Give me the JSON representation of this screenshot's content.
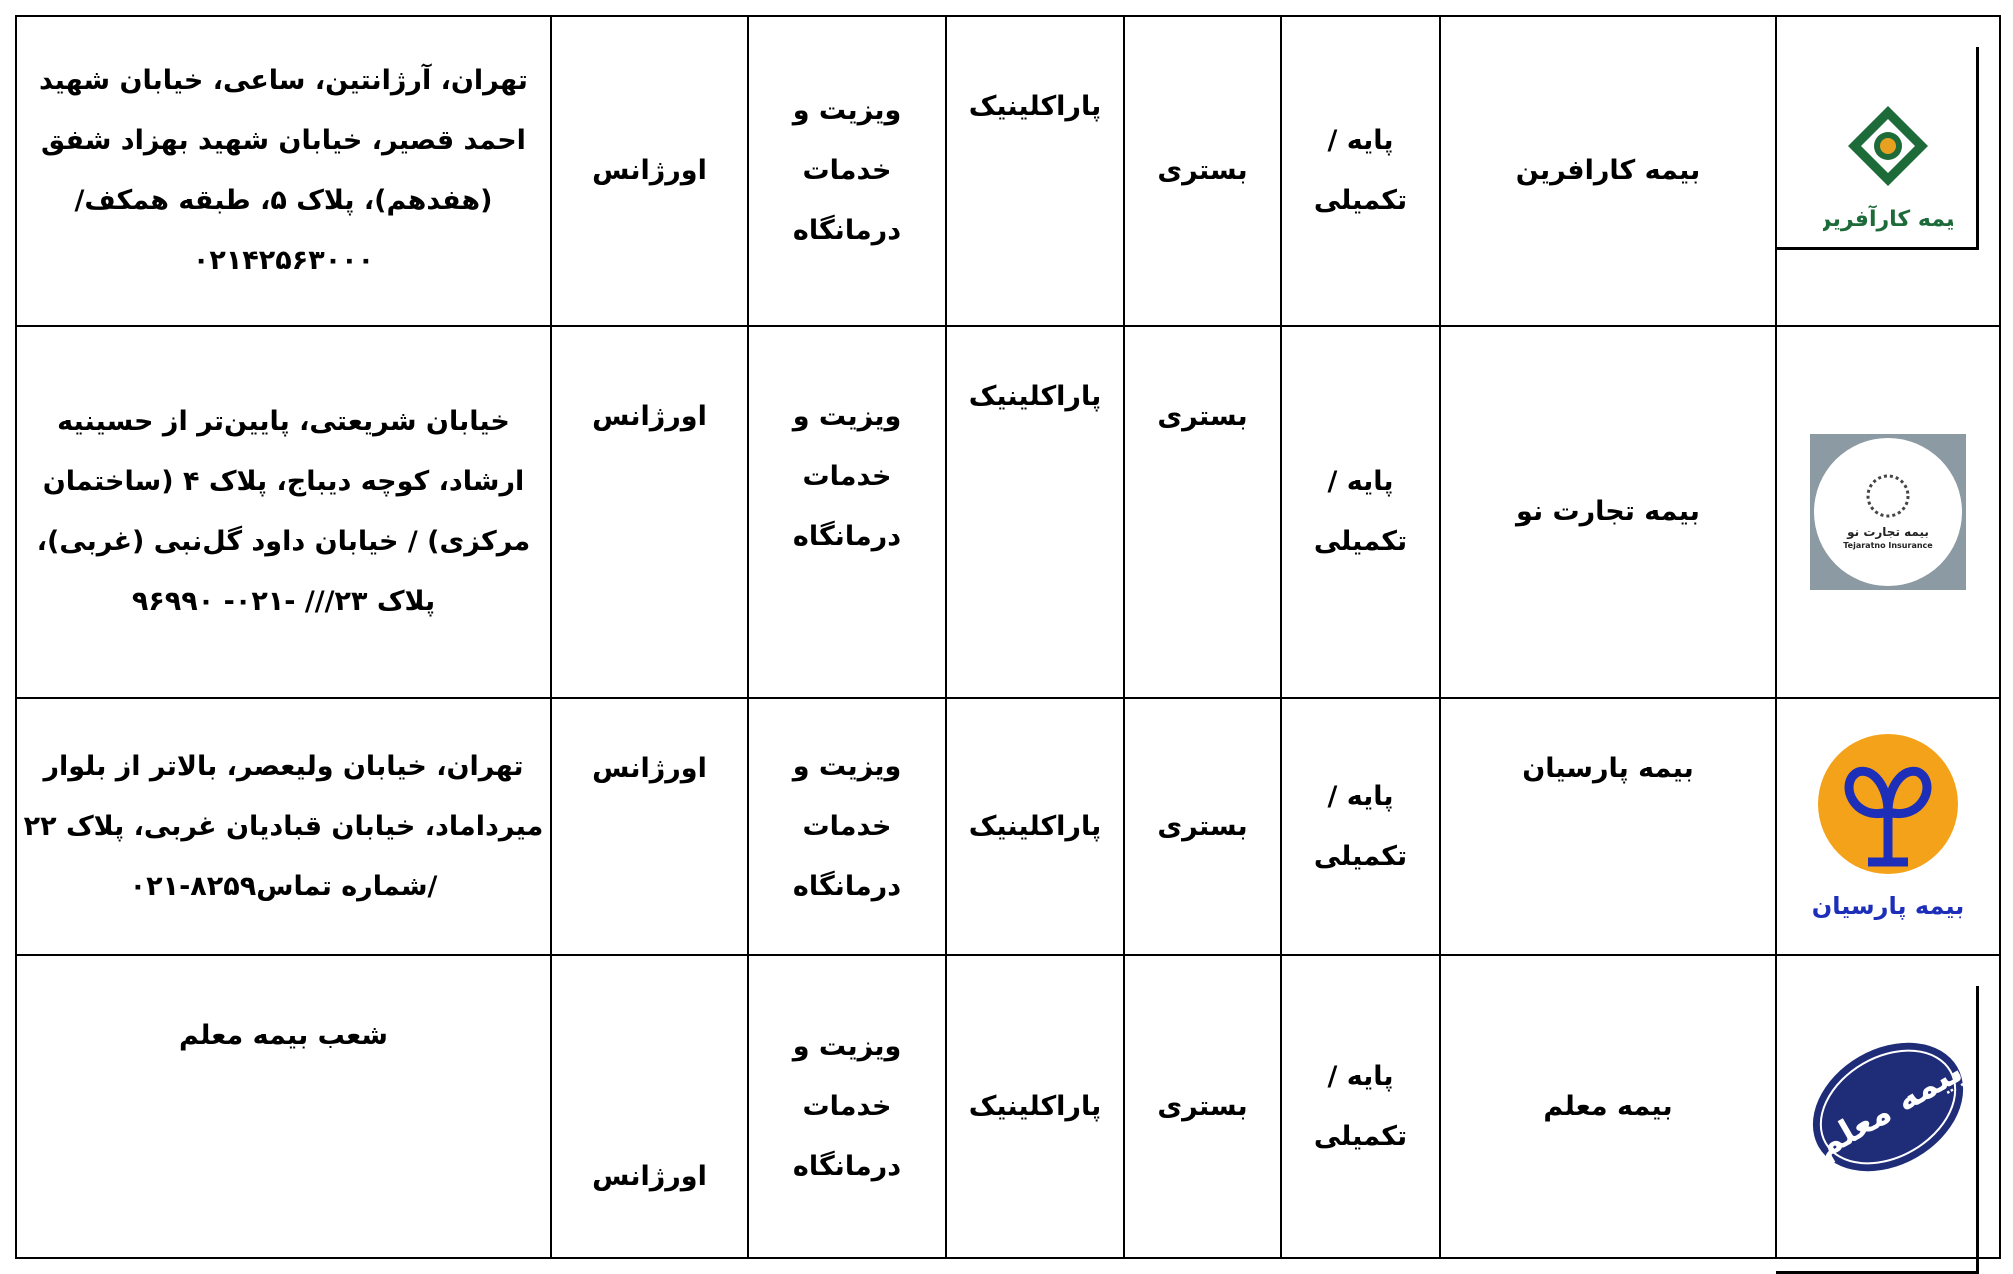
{
  "rows": [
    {
      "logo": "karafarin-logo",
      "logo_text": "بیمه کارآفرین",
      "name": "بیمه کارافرین",
      "coverage": "پایه /تکمیلی",
      "inpatient": "بستری",
      "paraclinic": "پاراکلینیک",
      "visit": "ویزیت و خدمات درمانگاه",
      "emergency": "اورژانس",
      "address": "تهران، آرژانتین، ساعی، خیابان شهید احمد قصیر، خیابان شهید بهزاد شفق (هفدهم)، پلاک ۵، طبقه همکف/ ۰۲۱۴۲۵۶۳۰۰۰"
    },
    {
      "logo": "tejarat-no-logo",
      "logo_text": "بیمه تجارت نو Tejaratno Insurance",
      "name": "بیمه تجارت نو",
      "coverage": "پایه /تکمیلی",
      "inpatient": "بستری",
      "paraclinic": "پاراکلینیک",
      "visit": "ویزیت و خدمات درمانگاه",
      "emergency": "اورژانس",
      "address": "خیابان شریعتی، پایین‌تر از حسینیه ارشاد، کوچه دیباج، پلاک ۴ (ساختمان مرکزی) / خیابان داود گل‌نبی (غربی)، پلاک ۲۳/// -۰۲۱- ۹۶۹۹۰"
    },
    {
      "logo": "parsian-logo",
      "logo_text": "بیمه پارسیان",
      "name": "بیمه پارسیان",
      "coverage": "پایه /تکمیلی",
      "inpatient": "بستری",
      "paraclinic": "پاراکلینیک",
      "visit": "ویزیت و خدمات درمانگاه",
      "emergency": "اورژانس",
      "address": "تهران، خیابان ولیعصر، بالاتر از بلوار میرداماد، خیابان قبادیان غربی، پلاک ۲۲ /شماره تماس۸۲۵۹-۰۲۱"
    },
    {
      "logo": "moallem-logo",
      "logo_text": "بیمه معلم",
      "name": "بیمه معلم",
      "coverage": "پایه /تکمیلی",
      "inpatient": "بستری",
      "paraclinic": "پاراکلینیک",
      "visit": "ویزیت و خدمات درمانگاه",
      "emergency": "اورژانس",
      "address": "شعب بیمه معلم"
    }
  ],
  "colors": {
    "parsian_orange": "#f5a21b",
    "parsian_blue": "#1d2fb8",
    "moallem_blue": "#1f2c78",
    "karafarin_green": "#1e6b3a",
    "tejarat_bg": "#8c9aa3"
  }
}
